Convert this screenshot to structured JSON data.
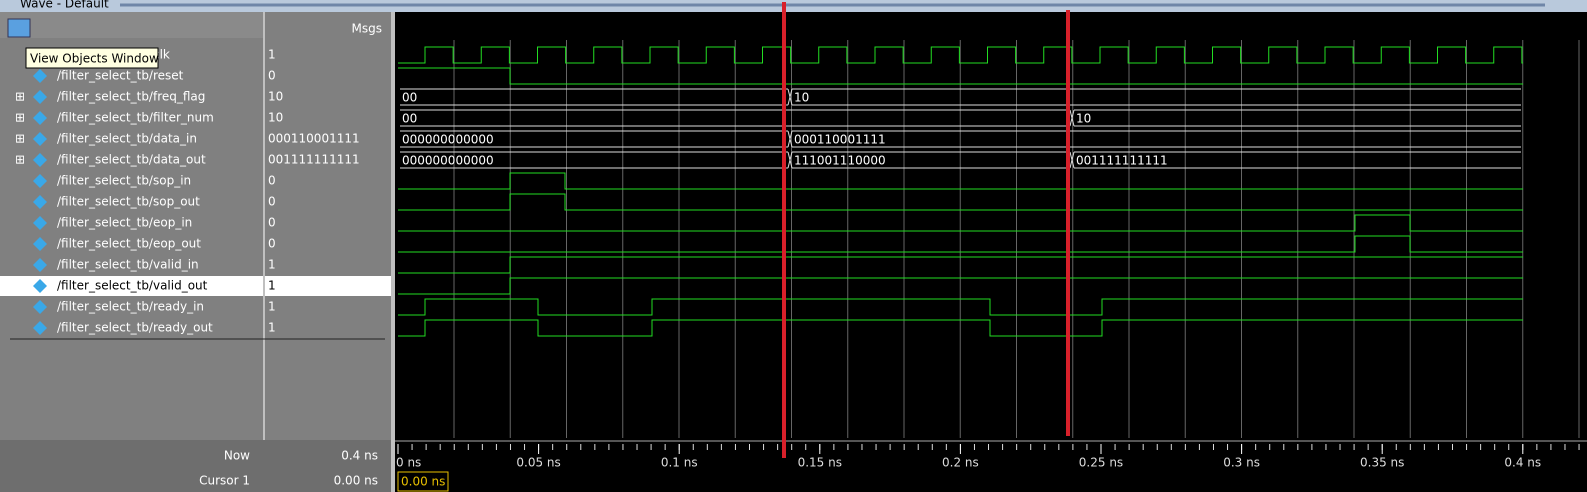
{
  "window": {
    "title": "Wave - Default",
    "tooltip": "View Objects Window",
    "header": "Msgs"
  },
  "signals": [
    {
      "name": "/filter_select_tb/clk",
      "value": "1"
    },
    {
      "name": "/filter_select_tb/reset",
      "value": "0"
    },
    {
      "name": "/filter_select_tb/freq_flag",
      "value": "10",
      "segments": [
        "00",
        "10"
      ]
    },
    {
      "name": "/filter_select_tb/filter_num",
      "value": "10",
      "segments": [
        "00",
        "10"
      ]
    },
    {
      "name": "/filter_select_tb/data_in",
      "value": "000110001111",
      "segments": [
        "000000000000",
        "000110001111"
      ]
    },
    {
      "name": "/filter_select_tb/data_out",
      "value": "001111111111",
      "segments": [
        "000000000000",
        "111001110000",
        "001111111111"
      ]
    },
    {
      "name": "/filter_select_tb/sop_in",
      "value": "0"
    },
    {
      "name": "/filter_select_tb/sop_out",
      "value": "0"
    },
    {
      "name": "/filter_select_tb/eop_in",
      "value": "0"
    },
    {
      "name": "/filter_select_tb/eop_out",
      "value": "0"
    },
    {
      "name": "/filter_select_tb/valid_in",
      "value": "1"
    },
    {
      "name": "/filter_select_tb/valid_out",
      "value": "1"
    },
    {
      "name": "/filter_select_tb/ready_in",
      "value": "1"
    },
    {
      "name": "/filter_select_tb/ready_out",
      "value": "1"
    }
  ],
  "timeline": [
    "0 ns",
    "0.05 ns",
    "0.1 ns",
    "0.15 ns",
    "0.2 ns",
    "0.25 ns",
    "0.3 ns",
    "0.35 ns",
    "0.4 ns"
  ],
  "status": {
    "now_label": "Now",
    "now_value": "0.4 ns",
    "cursor_label": "Cursor 1",
    "cursor_value": "0.00 ns",
    "cursor_box": "0.00 ns"
  }
}
